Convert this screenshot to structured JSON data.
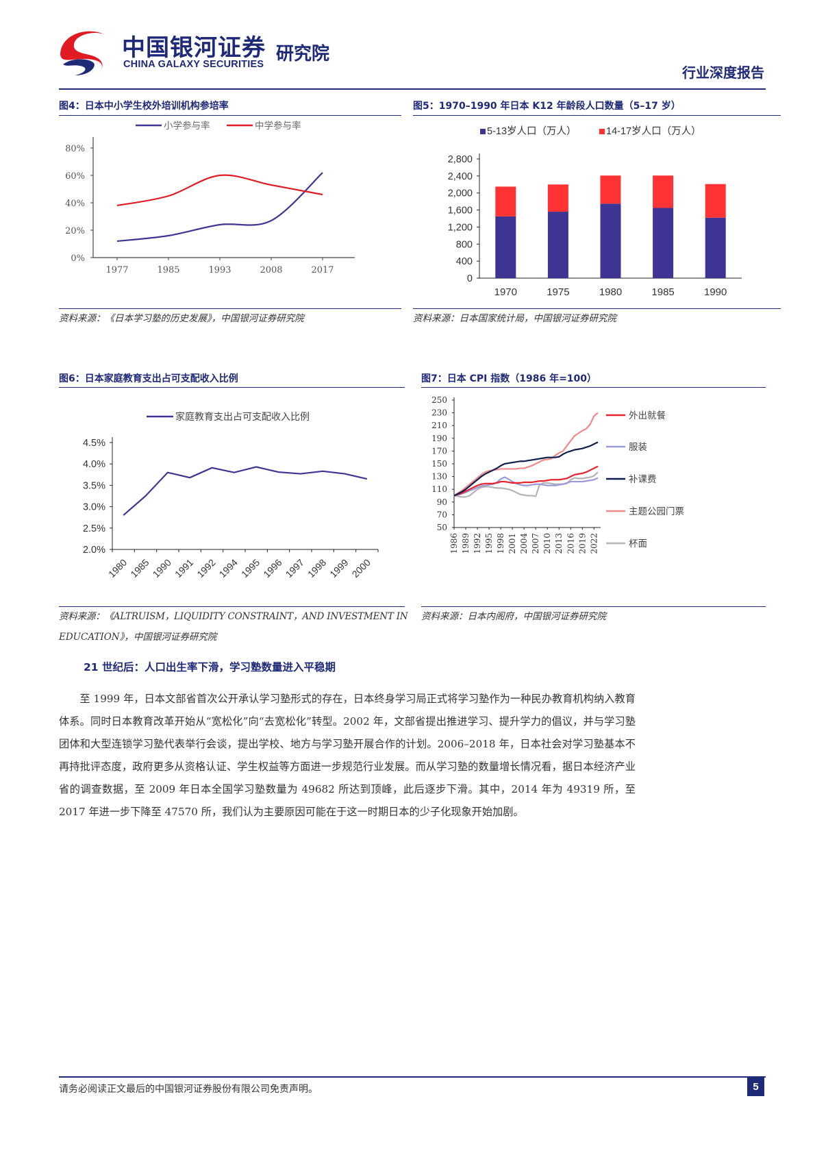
{
  "header": {
    "brand_cn": "中国银河证券",
    "brand_en": "CHINA GALAXY SECURITIES",
    "institute": "研究院",
    "report_type": "行业深度报告",
    "logo_icon": "galaxy-s-logo-icon",
    "colors": {
      "brand_blue": "#1e2a78",
      "brand_red": "#e11b22"
    }
  },
  "figures": {
    "fig4": {
      "title": "图4：日本中小学生校外培训机构参培率",
      "source": "资料来源：《日本学习塾的历史发展》，中国银河证券研究院"
    },
    "fig5": {
      "title": "图5：1970–1990 年日本 K12 年龄段人口数量（5–17 岁）",
      "source": "资料来源：日本国家统计局，中国银河证券研究院"
    },
    "fig6": {
      "title": "图6：日本家庭教育支出占可支配收入比例",
      "source_line1": "资料来源：《ALTRUISM，LIQUIDITY CONSTRAINT，AND INVESTMENT IN",
      "source_line2": "EDUCATION》，中国银河证券研究院"
    },
    "fig7": {
      "title": "图7：日本 CPI 指数（1986 年=100）",
      "source": "资料来源：日本内阁府，中国银河证券研究院"
    }
  },
  "chart_data": [
    {
      "id": "fig4",
      "type": "line",
      "categories": [
        "1977",
        "1985",
        "1993",
        "2008",
        "2017"
      ],
      "series": [
        {
          "name": "小学参与率",
          "color": "#3d3494",
          "values": [
            0.12,
            0.16,
            0.24,
            0.27,
            0.62
          ]
        },
        {
          "name": "中学参与率",
          "color": "#e11b22",
          "values": [
            0.38,
            0.45,
            0.6,
            0.53,
            0.46
          ]
        }
      ],
      "yticks": [
        "0%",
        "20%",
        "40%",
        "60%",
        "80%"
      ],
      "ylim": [
        0,
        0.8
      ],
      "legend": "top"
    },
    {
      "id": "fig5",
      "type": "bar",
      "stacked": true,
      "categories": [
        "1970",
        "1975",
        "1980",
        "1985",
        "1990"
      ],
      "series": [
        {
          "name": "5-13岁人口（万人）",
          "color": "#3d3494",
          "values": [
            1450,
            1560,
            1750,
            1650,
            1420
          ]
        },
        {
          "name": "14-17岁人口（万人）",
          "color": "#ff3333",
          "values": [
            700,
            640,
            660,
            760,
            790
          ]
        }
      ],
      "yticks": [
        "0",
        "400",
        "800",
        "1,200",
        "1,600",
        "2,000",
        "2,400",
        "2,800"
      ],
      "ylim": [
        0,
        2800
      ],
      "legend": "top"
    },
    {
      "id": "fig6",
      "type": "line",
      "categories": [
        "1980",
        "1985",
        "1990",
        "1991",
        "1992",
        "1994",
        "1995",
        "1996",
        "1997",
        "1998",
        "1999",
        "2000"
      ],
      "series": [
        {
          "name": "家庭教育支出占可支配收入比例",
          "color": "#3d3494",
          "values": [
            2.8,
            3.25,
            3.8,
            3.68,
            3.91,
            3.8,
            3.93,
            3.81,
            3.77,
            3.83,
            3.77,
            3.65
          ]
        }
      ],
      "yticks": [
        "2.0%",
        "2.5%",
        "3.0%",
        "3.5%",
        "4.0%",
        "4.5%"
      ],
      "ylim": [
        2.0,
        4.5
      ],
      "legend": "top"
    },
    {
      "id": "fig7",
      "type": "line",
      "x": [
        1986,
        1987,
        1988,
        1989,
        1990,
        1991,
        1992,
        1993,
        1994,
        1995,
        1996,
        1997,
        1998,
        1999,
        2000,
        2001,
        2002,
        2003,
        2004,
        2005,
        2006,
        2007,
        2008,
        2009,
        2010,
        2011,
        2012,
        2013,
        2014,
        2015,
        2016,
        2017,
        2018,
        2019,
        2020,
        2021,
        2022,
        2023
      ],
      "xticks": [
        "1986",
        "1989",
        "1992",
        "1995",
        "1998",
        "2001",
        "2004",
        "2007",
        "2010",
        "2013",
        "2016",
        "2019",
        "2022"
      ],
      "yticks": [
        "50",
        "70",
        "90",
        "110",
        "130",
        "150",
        "170",
        "190",
        "210",
        "230",
        "250"
      ],
      "ylim": [
        50,
        250
      ],
      "series": [
        {
          "name": "外出就餐",
          "color": "#e8232a",
          "values": [
            100,
            102,
            104,
            107,
            110,
            113,
            116,
            118,
            119,
            119,
            119,
            120,
            122,
            122,
            121,
            120,
            120,
            120,
            121,
            121,
            121,
            122,
            123,
            123,
            124,
            125,
            125,
            125,
            126,
            127,
            130,
            133,
            134,
            135,
            137,
            140,
            143,
            146
          ]
        },
        {
          "name": "服装",
          "color": "#9a9ad6",
          "values": [
            100,
            101,
            103,
            105,
            108,
            110,
            113,
            115,
            116,
            117,
            118,
            121,
            126,
            129,
            126,
            122,
            119,
            117,
            116,
            116,
            117,
            118,
            118,
            117,
            116,
            116,
            116,
            117,
            118,
            120,
            122,
            122,
            122,
            122,
            123,
            124,
            125,
            128
          ]
        },
        {
          "name": "补课费",
          "color": "#0d1f4d",
          "values": [
            100,
            103,
            106,
            110,
            115,
            120,
            125,
            130,
            134,
            137,
            140,
            143,
            147,
            150,
            151,
            152,
            153,
            154,
            154,
            155,
            156,
            157,
            158,
            159,
            160,
            160,
            160,
            161,
            165,
            168,
            170,
            172,
            173,
            174,
            176,
            178,
            181,
            184
          ]
        },
        {
          "name": "主题公园门票",
          "color": "#f08a8a",
          "values": [
            100,
            104,
            108,
            113,
            118,
            123,
            128,
            133,
            137,
            139,
            140,
            141,
            142,
            142,
            142,
            142,
            142,
            143,
            143,
            145,
            147,
            150,
            153,
            156,
            157,
            158,
            163,
            167,
            170,
            178,
            186,
            194,
            198,
            202,
            205,
            212,
            225,
            230
          ]
        },
        {
          "name": "杯面",
          "color": "#b3b3b8",
          "values": [
            100,
            99,
            98,
            98,
            100,
            105,
            110,
            113,
            114,
            114,
            113,
            112,
            112,
            111,
            110,
            108,
            105,
            102,
            101,
            100,
            100,
            99,
            117,
            120,
            120,
            119,
            118,
            118,
            118,
            119,
            125,
            128,
            127,
            127,
            128,
            129,
            131,
            137
          ]
        }
      ],
      "legend": "right"
    }
  ],
  "section": {
    "heading": "21 世纪后：人口出生率下滑，学习塾数量进入平稳期",
    "paragraph": "至 1999 年，日本文部省首次公开承认学习塾形式的存在，日本终身学习局正式将学习塾作为一种民办教育机构纳入教育体系。同时日本教育改革开始从“宽松化”向“去宽松化”转型。2002 年，文部省提出推进学习、提升学力的倡议，并与学习塾团体和大型连锁学习塾代表举行会谈，提出学校、地方与学习塾开展合作的计划。2006–2018 年，日本社会对学习塾基本不再持批评态度，政府更多从资格认证、学生权益等方面进一步规范行业发展。而从学习塾的数量增长情况看，据日本经济产业省的调查数据，至 2009 年日本全国学习塾数量为 49682 所达到顶峰，此后逐步下滑。其中，2014 年为 49319 所，至 2017 年进一步下降至 47570 所，我们认为主要原因可能在于这一时期日本的少子化现象开始加剧。"
  },
  "footer": {
    "disclaimer": "请务必阅读正文最后的中国银河证券股份有限公司免责声明。",
    "page_number": "5"
  }
}
